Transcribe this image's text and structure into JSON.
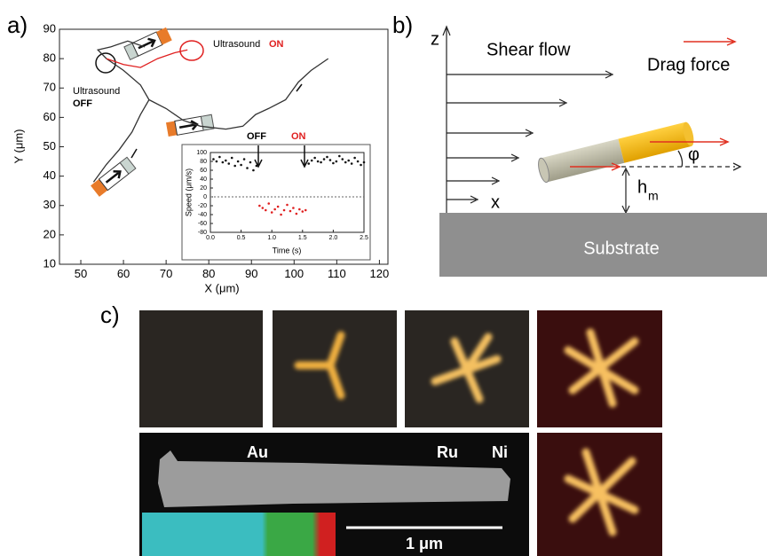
{
  "chart_data": [
    {
      "type": "line",
      "panel_label": "a)",
      "xlabel": "X (μm)",
      "ylabel": "Y (μm)",
      "xlim": [
        45,
        122
      ],
      "ylim": [
        10,
        90
      ],
      "xticks": [
        50,
        60,
        70,
        80,
        90,
        100,
        110,
        120
      ],
      "yticks": [
        10,
        20,
        30,
        40,
        50,
        60,
        70,
        80,
        90
      ],
      "annotations": {
        "on_label": "Ultrasound",
        "on_state": "ON",
        "off_label": "Ultrasound",
        "off_state": "OFF"
      },
      "series": [
        {
          "color": "#333333",
          "x": [
            53,
            56,
            59,
            62,
            64,
            66,
            64,
            60,
            56,
            54,
            57,
            61,
            65,
            null,
            66,
            70,
            74,
            78,
            84,
            88,
            91,
            94,
            98,
            101,
            104,
            108
          ],
          "values": [
            38,
            44,
            49,
            55,
            61,
            66,
            71,
            76,
            80,
            83,
            84,
            86,
            84,
            null,
            66,
            63,
            59,
            57,
            56,
            57,
            61,
            63,
            66,
            72,
            76,
            80
          ]
        },
        {
          "color": "#e02020",
          "x": [
            56,
            60,
            64,
            68,
            72,
            75
          ],
          "values": [
            80,
            78,
            77,
            80,
            82,
            83
          ]
        }
      ]
    },
    {
      "type": "scatter",
      "xlabel": "Time (s)",
      "ylabel": "Speed (μm/s)",
      "xlim": [
        0,
        2.5
      ],
      "ylim": [
        -80,
        100
      ],
      "xticks": [
        {
          "value": 0,
          "label": "0.0"
        },
        0.5,
        {
          "value": 1,
          "label": "1.0"
        },
        1.5,
        {
          "value": 2,
          "label": "2.0"
        },
        2.5
      ],
      "yticks": [
        -80,
        -60,
        -40,
        -20,
        0,
        20,
        40,
        60,
        80,
        100
      ],
      "annotations": {
        "off": "OFF",
        "on": "ON"
      },
      "series": [
        {
          "color": "#111111",
          "x": [
            0.05,
            0.1,
            0.15,
            0.2,
            0.25,
            0.3,
            0.35,
            0.4,
            0.45,
            0.5,
            0.55,
            0.6,
            0.65,
            0.7,
            0.75
          ],
          "values": [
            85,
            80,
            90,
            78,
            82,
            75,
            88,
            70,
            80,
            72,
            85,
            65,
            78,
            60,
            70
          ]
        },
        {
          "color": "#e02020",
          "x": [
            0.8,
            0.85,
            0.9,
            0.95,
            1.0,
            1.05,
            1.1,
            1.15,
            1.2,
            1.25,
            1.3,
            1.35,
            1.4,
            1.45,
            1.5,
            1.55
          ],
          "values": [
            -20,
            -25,
            -30,
            -15,
            -35,
            -28,
            -22,
            -40,
            -30,
            -18,
            -32,
            -25,
            -38,
            -28,
            -33,
            -30
          ]
        },
        {
          "color": "#111111",
          "x": [
            1.6,
            1.65,
            1.7,
            1.75,
            1.8,
            1.85,
            1.9,
            1.95,
            2.0,
            2.05,
            2.1,
            2.15,
            2.2,
            2.25,
            2.3,
            2.35,
            2.4,
            2.45,
            2.5
          ],
          "values": [
            75,
            82,
            88,
            80,
            78,
            85,
            90,
            83,
            76,
            80,
            92,
            85,
            78,
            82,
            75,
            88,
            80,
            72,
            78
          ]
        }
      ]
    }
  ],
  "diagram": {
    "panel_label": "b)",
    "z_axis": "z",
    "x_axis": "x",
    "shear_flow": "Shear flow",
    "drag_force": "Drag force",
    "angle": "φ",
    "height": {
      "text": "h",
      "subscript": "m"
    },
    "substrate": "Substrate"
  },
  "micrographs": {
    "panel_label": "c)",
    "labels": [
      "Au",
      "Ru",
      "Ni"
    ],
    "scale_bar": "1 μm"
  }
}
